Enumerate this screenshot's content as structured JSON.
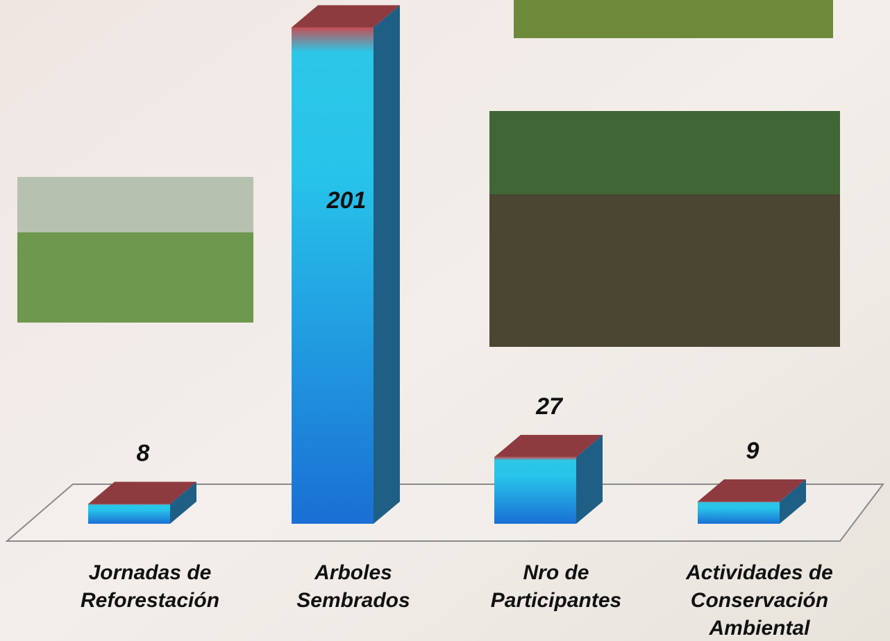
{
  "chart_data": {
    "type": "bar3d",
    "categories": [
      "Jornadas de Reforestación",
      "Arboles Sembrados",
      "Nro de Participantes",
      "Actividades de Conservación Ambiental"
    ],
    "values": [
      8,
      201,
      27,
      9
    ],
    "color": "#1aa6e0",
    "top_color": "#8e3b3f",
    "side_color": "#1f5f86"
  }
}
